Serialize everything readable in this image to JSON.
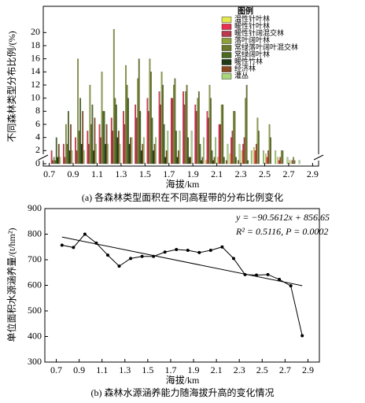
{
  "chart_data": [
    {
      "type": "bar",
      "caption": "(a) 各森林类型面积在不同高程带的分布比例变化",
      "x_label": "海拔/km",
      "y_label": "不同森林类型分布比例/(%)",
      "legend_title": "图例",
      "legend": "upper right",
      "x": [
        0.75,
        0.85,
        0.95,
        1.05,
        1.15,
        1.25,
        1.35,
        1.45,
        1.55,
        1.65,
        1.75,
        1.85,
        1.95,
        2.05,
        2.15,
        2.25,
        2.35,
        2.45,
        2.55,
        2.65,
        2.75
      ],
      "xlim": [
        0.65,
        2.95
      ],
      "xticks": [
        0.7,
        0.9,
        1.1,
        1.3,
        1.5,
        1.7,
        1.9,
        2.1,
        2.3,
        2.5,
        2.7,
        2.9
      ],
      "ylim": [
        0,
        24
      ],
      "yticks": [
        0,
        2,
        4,
        6,
        8,
        10,
        12,
        14,
        16,
        18,
        20
      ],
      "series": [
        {
          "name": "温性针叶林",
          "color": "#e4e84a",
          "values": [
            0,
            0,
            0,
            0,
            0,
            0,
            0,
            0,
            0,
            0,
            0,
            0,
            0,
            0.5,
            1,
            1.5,
            2,
            2.5,
            1.5,
            1,
            0.5
          ]
        },
        {
          "name": "暖性针叶林",
          "color": "#e8304e",
          "values": [
            2,
            3,
            4,
            5,
            6,
            7,
            8,
            9,
            10,
            11,
            10,
            11,
            9,
            8,
            6,
            4,
            3,
            2,
            1,
            0.5,
            0
          ]
        },
        {
          "name": "暖性针阔混交林",
          "color": "#b83a4c",
          "values": [
            0.5,
            1,
            2,
            3,
            4,
            5,
            6,
            7,
            8,
            9,
            10,
            9,
            8,
            7,
            6,
            5,
            4,
            3,
            2,
            1,
            0.5
          ]
        },
        {
          "name": "落叶阔叶林",
          "color": "#8ea03a",
          "values": [
            1,
            6,
            16,
            12,
            14,
            20.5,
            15,
            13,
            16,
            14,
            12,
            11,
            10,
            12,
            9,
            8,
            10,
            7,
            6,
            2,
            1
          ]
        },
        {
          "name": "常绿落叶阔叶混交林",
          "color": "#6a7a2a",
          "values": [
            0.5,
            3,
            5,
            6,
            8,
            10,
            12,
            16,
            14,
            12,
            13,
            12,
            11,
            10,
            9,
            8,
            12,
            5,
            4,
            2,
            0.5
          ]
        },
        {
          "name": "常绿阔叶林",
          "color": "#4a6a22",
          "values": [
            4,
            8,
            10,
            9,
            8,
            9,
            10,
            8,
            7,
            6,
            5,
            4,
            3,
            2,
            1,
            1,
            0.5,
            0,
            0,
            0,
            0
          ]
        },
        {
          "name": "暖性竹林",
          "color": "#1e3a16",
          "values": [
            1,
            2,
            3,
            2,
            3,
            4,
            3,
            2,
            2,
            1,
            1,
            1,
            0.5,
            0.5,
            0,
            0,
            0,
            0,
            0,
            0,
            0
          ]
        },
        {
          "name": "经济林",
          "color": "#8a4a20",
          "values": [
            3,
            6,
            8,
            7,
            6,
            5,
            4,
            3,
            3,
            2,
            2,
            1,
            1,
            1,
            0.5,
            0.5,
            0,
            0,
            0,
            0,
            0
          ]
        },
        {
          "name": "灌丛",
          "color": "#a8d878",
          "values": [
            1,
            2,
            2,
            3,
            3,
            3,
            4,
            4,
            4,
            5,
            5,
            5,
            4,
            4,
            3,
            3,
            2,
            2,
            2,
            1,
            0.5
          ]
        }
      ]
    },
    {
      "type": "line",
      "caption": "(b) 森林水源涵养能力随海拔升高的变化情况",
      "x_label": "海拔/km",
      "y_label": "单位面积水源涵养量/(t/hm²)",
      "equation": "y = −90.5612x + 856.65",
      "stats": "R² = 0.5116, P = 0.0002",
      "x": [
        0.75,
        0.85,
        0.95,
        1.05,
        1.15,
        1.25,
        1.35,
        1.45,
        1.55,
        1.65,
        1.75,
        1.85,
        1.95,
        2.05,
        2.15,
        2.25,
        2.35,
        2.45,
        2.55,
        2.65,
        2.75,
        2.85
      ],
      "values": [
        757,
        748,
        800,
        765,
        718,
        675,
        705,
        713,
        713,
        730,
        740,
        737,
        728,
        737,
        750,
        705,
        642,
        640,
        642,
        623,
        598,
        403
      ],
      "color": "#000000",
      "trend_line": {
        "x": [
          0.75,
          2.85
        ],
        "values": [
          788.7,
          598.6
        ]
      },
      "xlim": [
        0.6,
        3.0
      ],
      "xticks": [
        0.7,
        0.9,
        1.1,
        1.3,
        1.5,
        1.7,
        1.9,
        2.1,
        2.3,
        2.5,
        2.7,
        2.9
      ],
      "ylim": [
        300,
        900
      ],
      "yticks": [
        300,
        400,
        500,
        600,
        700,
        800,
        900
      ]
    }
  ]
}
